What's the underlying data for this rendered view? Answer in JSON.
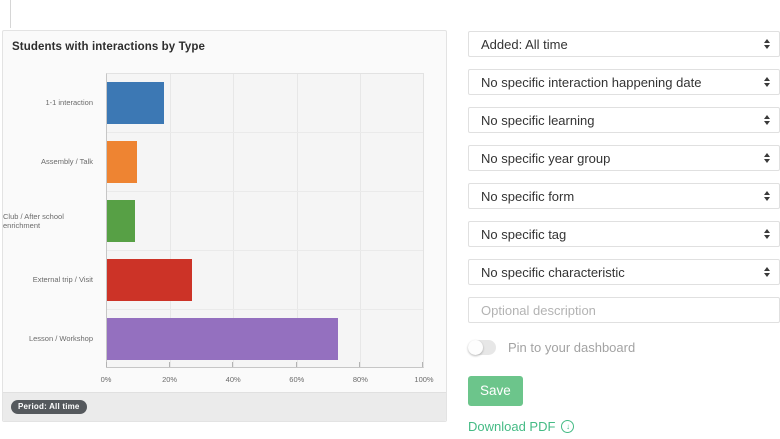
{
  "chart_panel": {
    "title": "Students with interactions by Type",
    "footer_badge": "Period: All time"
  },
  "chart_data": {
    "type": "bar",
    "orientation": "horizontal",
    "title": "Students with interactions by Type",
    "categories": [
      "1-1 interaction",
      "Assembly / Talk",
      "Club / After school enrichment",
      "External trip / Visit",
      "Lesson / Workshop"
    ],
    "values": [
      18,
      9.5,
      9,
      27,
      73
    ],
    "unit": "%",
    "colors": [
      "#3c78b4",
      "#ee8432",
      "#57a045",
      "#cc3327",
      "#9470bf"
    ],
    "xticks": [
      "0%",
      "20%",
      "40%",
      "60%",
      "80%",
      "100%"
    ],
    "xlim": [
      0,
      100
    ],
    "grid": true,
    "legend": false,
    "period_label": "Period: All time"
  },
  "filters": {
    "selects": [
      "Added: All time",
      "No specific interaction happening date",
      "No specific learning",
      "No specific year group",
      "No specific form",
      "No specific tag",
      "No specific characteristic"
    ],
    "description_placeholder": "Optional description",
    "pin_label": "Pin to your dashboard",
    "pin_state": "off",
    "save_label": "Save",
    "download_label": "Download PDF",
    "download_icon_glyph": "↓"
  },
  "ui_colors": {
    "save_button": "#6cc58b",
    "download_link": "#45bb85",
    "badge_background": "#55595d"
  }
}
